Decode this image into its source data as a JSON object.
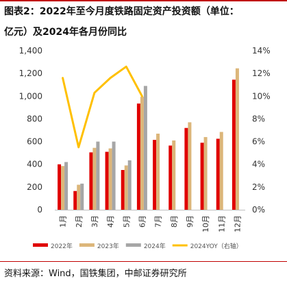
{
  "header": {
    "title_line1": "图表2：2022年至今月度铁路固定资产投资额（单位：",
    "title_line2": "亿元）及2024年各月份同比"
  },
  "source": "资料来源：Wind，国铁集团，中邮证券研究所",
  "colors": {
    "s2022": "#e00000",
    "s2023": "#dcb67a",
    "s2024": "#a6a6a6",
    "yoy": "#ffc000",
    "accent": "#c00000"
  },
  "chart_data": {
    "type": "bar",
    "categories": [
      "1月",
      "2月",
      "3月",
      "4月",
      "5月",
      "6月",
      "7月",
      "8月",
      "9月",
      "10月",
      "11月",
      "12月"
    ],
    "series": [
      {
        "name": "2022年",
        "type": "bar",
        "axis": "left",
        "color": "#e00000",
        "values": [
          400,
          165,
          505,
          510,
          350,
          935,
          615,
          565,
          720,
          590,
          625,
          1145
        ]
      },
      {
        "name": "2023年",
        "type": "bar",
        "axis": "left",
        "color": "#dcb67a",
        "values": [
          385,
          220,
          545,
          540,
          390,
          995,
          670,
          610,
          770,
          640,
          685,
          1245
        ]
      },
      {
        "name": "2024年",
        "type": "bar",
        "axis": "left",
        "color": "#a6a6a6",
        "values": [
          420,
          230,
          600,
          600,
          435,
          1090,
          null,
          null,
          null,
          null,
          null,
          null
        ]
      },
      {
        "name": "2024YOY（右轴）",
        "type": "line",
        "axis": "right",
        "color": "#ffc000",
        "values": [
          11.6,
          5.5,
          10.3,
          11.6,
          12.6,
          10.0,
          null,
          null,
          null,
          null,
          null,
          null
        ]
      }
    ],
    "left_axis": {
      "min": 0,
      "max": 1400,
      "step": 200,
      "tick_labels": [
        "0",
        "200",
        "400",
        "600",
        "800",
        "1,000",
        "1,200",
        "1,400"
      ]
    },
    "right_axis": {
      "min": 0,
      "max": 14,
      "step": 2,
      "tick_labels": [
        "0%",
        "2%",
        "4%",
        "6%",
        "8%",
        "10%",
        "12%",
        "14%"
      ]
    },
    "grid": false,
    "legend_position": "bottom"
  }
}
